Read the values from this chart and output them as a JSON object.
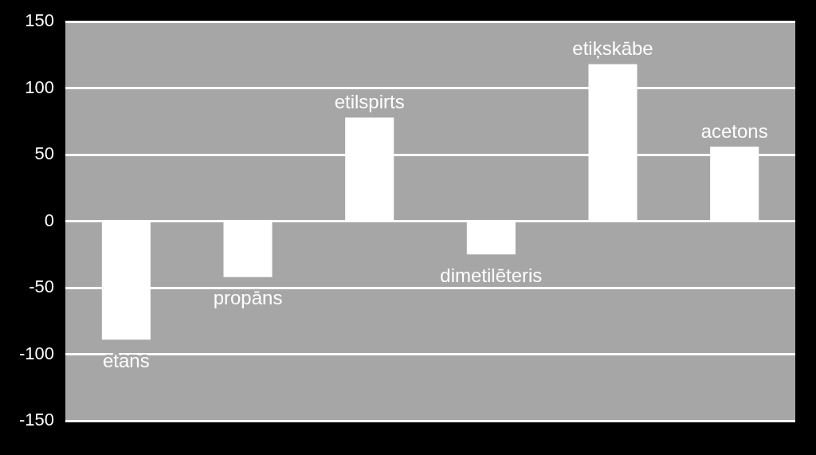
{
  "chart_data": {
    "type": "bar",
    "categories": [
      "etans",
      "propāns",
      "etilspirts",
      "dimetilēteris",
      "etiķskābe",
      "acetons"
    ],
    "values": [
      -89,
      -42,
      78,
      -25,
      118,
      56
    ],
    "color": "#ffffff",
    "ylim": [
      -150,
      150
    ],
    "yticks": [
      -150,
      -100,
      -50,
      0,
      50,
      100,
      150
    ],
    "grid": "y",
    "legend": false
  }
}
